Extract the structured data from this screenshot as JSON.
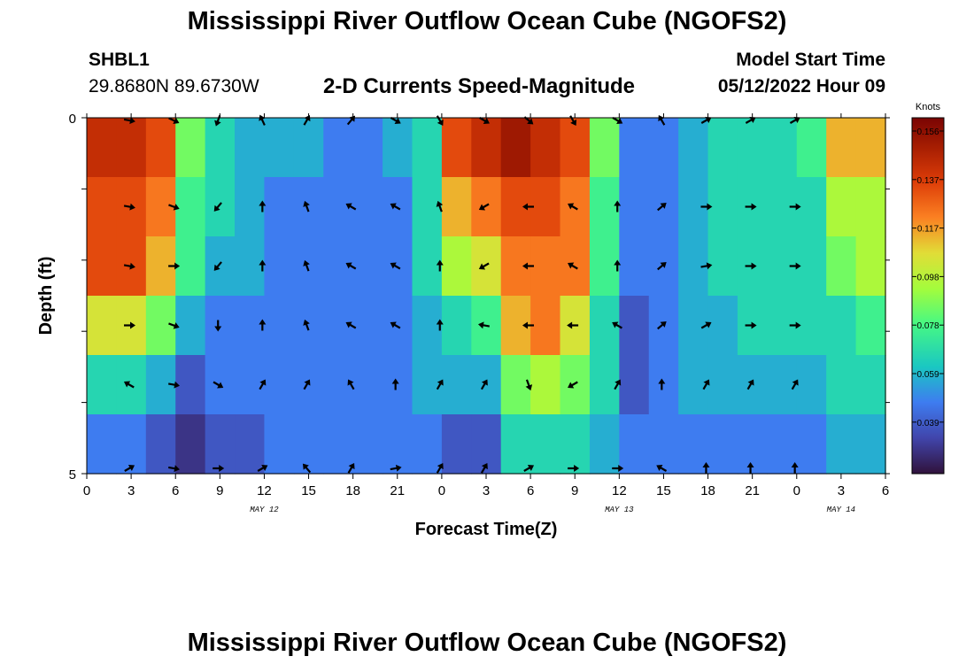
{
  "header": {
    "title": "Mississippi River Outflow Ocean Cube (NGOFS2)",
    "station_id": "SHBL1",
    "station_coords": "29.8680N  89.6730W",
    "plot_title": "2-D Currents Speed-Magnitude",
    "model_start_label": "Model Start Time",
    "model_start_value": "05/12/2022 Hour 09"
  },
  "footer": {
    "next_title": "Mississippi River Outflow Ocean Cube (NGOFS2)"
  },
  "chart_data": {
    "type": "heatmap",
    "title": "2-D Currents Speed-Magnitude",
    "xlabel": "Forecast Time(Z)",
    "ylabel": "Depth (ft)",
    "x_tick_labels": [
      "0",
      "3",
      "6",
      "9",
      "12",
      "15",
      "18",
      "21",
      "0",
      "3",
      "6",
      "9",
      "12",
      "15",
      "18",
      "21",
      "0",
      "3",
      "6"
    ],
    "date_labels": [
      {
        "text": "MAY 12",
        "at_tick": 4
      },
      {
        "text": "MAY 13",
        "at_tick": 12
      },
      {
        "text": "MAY 14",
        "at_tick": 17
      }
    ],
    "y_tick_labels": {
      "top": "0",
      "bottom": "5"
    },
    "y_range": [
      0,
      5
    ],
    "colorbar": {
      "title": "Knots",
      "ticks": [
        "0.156",
        "0.137",
        "0.117",
        "0.098",
        "0.078",
        "0.059",
        "0.039"
      ],
      "range": [
        0.02,
        0.17
      ]
    },
    "hours": [
      0,
      2,
      4,
      6,
      8,
      10,
      12,
      14,
      16,
      18,
      20,
      22,
      24,
      26,
      28,
      30,
      32,
      34,
      36,
      38,
      40,
      42,
      44,
      46,
      48,
      50,
      52,
      54
    ],
    "speed_knots": [
      [
        0.15,
        0.15,
        0.14,
        0.09,
        0.07,
        0.06,
        0.06,
        0.06,
        0.05,
        0.05,
        0.06,
        0.07,
        0.14,
        0.15,
        0.16,
        0.15,
        0.14,
        0.09,
        0.05,
        0.05,
        0.06,
        0.07,
        0.07,
        0.07,
        0.08,
        0.12,
        0.12,
        0.14
      ],
      [
        0.14,
        0.14,
        0.13,
        0.08,
        0.07,
        0.06,
        0.05,
        0.05,
        0.05,
        0.05,
        0.05,
        0.07,
        0.12,
        0.13,
        0.14,
        0.14,
        0.13,
        0.08,
        0.05,
        0.05,
        0.06,
        0.07,
        0.07,
        0.07,
        0.07,
        0.1,
        0.1,
        0.12
      ],
      [
        0.14,
        0.14,
        0.12,
        0.08,
        0.06,
        0.06,
        0.05,
        0.05,
        0.05,
        0.05,
        0.05,
        0.07,
        0.1,
        0.11,
        0.13,
        0.13,
        0.13,
        0.08,
        0.05,
        0.05,
        0.06,
        0.07,
        0.07,
        0.07,
        0.07,
        0.09,
        0.1,
        0.12
      ],
      [
        0.11,
        0.11,
        0.09,
        0.06,
        0.05,
        0.05,
        0.05,
        0.05,
        0.05,
        0.05,
        0.05,
        0.06,
        0.07,
        0.08,
        0.12,
        0.13,
        0.11,
        0.07,
        0.04,
        0.05,
        0.06,
        0.06,
        0.07,
        0.07,
        0.07,
        0.07,
        0.08,
        0.11
      ],
      [
        0.07,
        0.07,
        0.06,
        0.04,
        0.05,
        0.05,
        0.05,
        0.05,
        0.05,
        0.05,
        0.05,
        0.06,
        0.06,
        0.06,
        0.09,
        0.1,
        0.09,
        0.07,
        0.04,
        0.05,
        0.06,
        0.06,
        0.06,
        0.06,
        0.06,
        0.07,
        0.07,
        0.09
      ],
      [
        0.05,
        0.05,
        0.04,
        0.03,
        0.04,
        0.04,
        0.05,
        0.05,
        0.05,
        0.05,
        0.05,
        0.05,
        0.04,
        0.04,
        0.07,
        0.07,
        0.07,
        0.06,
        0.05,
        0.05,
        0.05,
        0.05,
        0.05,
        0.05,
        0.05,
        0.06,
        0.06,
        0.07
      ]
    ],
    "arrow_hours": [
      -9,
      -6,
      -3,
      0,
      3,
      6,
      9,
      12,
      15,
      18,
      21,
      24,
      27,
      30,
      33,
      36,
      39,
      42,
      45
    ],
    "arrow_directions_deg": [
      [
        210,
        150,
        90,
        100,
        115,
        200,
        335,
        30,
        40,
        120,
        150,
        120,
        130,
        150,
        120,
        330,
        60,
        60,
        60
      ],
      [
        300,
        230,
        240,
        100,
        110,
        220,
        0,
        340,
        300,
        300,
        340,
        240,
        270,
        300,
        0,
        50,
        90,
        90,
        90
      ],
      [
        300,
        240,
        240,
        100,
        90,
        220,
        0,
        340,
        300,
        300,
        0,
        240,
        270,
        300,
        0,
        50,
        80,
        90,
        90
      ],
      [
        300,
        230,
        270,
        90,
        110,
        180,
        0,
        340,
        300,
        300,
        0,
        280,
        270,
        270,
        300,
        50,
        60,
        90,
        90
      ],
      [
        300,
        220,
        300,
        300,
        100,
        120,
        30,
        30,
        330,
        0,
        30,
        30,
        160,
        240,
        30,
        0,
        30,
        30,
        30
      ],
      [
        320,
        300,
        320,
        60,
        100,
        90,
        60,
        320,
        30,
        80,
        30,
        30,
        60,
        90,
        90,
        300,
        0,
        0,
        0
      ]
    ]
  }
}
